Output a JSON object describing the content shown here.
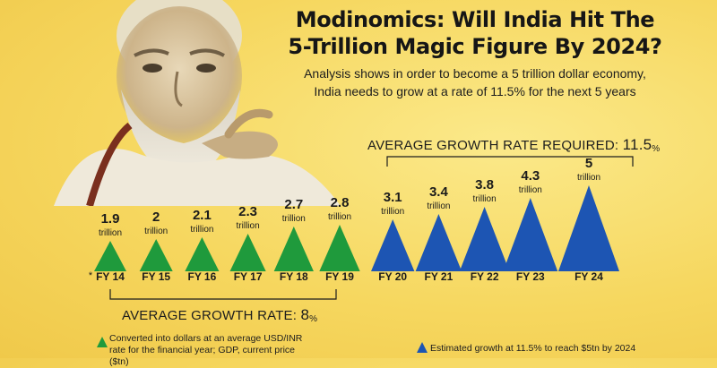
{
  "header": {
    "title_line1": "Modinomics: Will India Hit The",
    "title_line2": "5-Trillion Magic Figure By 2024?",
    "subtitle_line1": "Analysis shows in order to become a 5 trillion dollar economy,",
    "subtitle_line2": "India needs to grow at a rate of 11.5% for the next 5 years"
  },
  "growth": {
    "required_label": "AVERAGE GROWTH RATE REQUIRED:",
    "required_value": "11.5",
    "average_label": "AVERAGE GROWTH RATE:",
    "average_value": "8",
    "percent_sign": "%"
  },
  "legend": {
    "actual": "Converted into dollars at an average USD/INR rate for the financial year; GDP, current price ($tn)",
    "estimated": "Estimated growth at 11.5% to reach $5tn by 2024"
  },
  "chart_data": {
    "type": "bar",
    "categories": [
      "FY 14",
      "FY 15",
      "FY 16",
      "FY 17",
      "FY 18",
      "FY 19",
      "FY 20",
      "FY 21",
      "FY 22",
      "FY 23",
      "FY 24"
    ],
    "values": [
      1.9,
      2,
      2.1,
      2.3,
      2.7,
      2.8,
      3.1,
      3.4,
      3.8,
      4.3,
      5
    ],
    "value_labels": [
      "1.9",
      "2",
      "2.1",
      "2.3",
      "2.7",
      "2.8",
      "3.1",
      "3.4",
      "3.8",
      "4.3",
      "5"
    ],
    "unit_label": "trillion",
    "footnote_marker": "*",
    "series_type": [
      "actual",
      "actual",
      "actual",
      "actual",
      "actual",
      "actual",
      "estimated",
      "estimated",
      "estimated",
      "estimated",
      "estimated"
    ],
    "colors": {
      "actual": "#1f9a3c",
      "estimated": "#1d55b3"
    },
    "mark_shape": "triangle",
    "title": "Modinomics: Will India Hit The 5-Trillion Magic Figure By 2024?",
    "xlabel": "",
    "ylabel": "",
    "grid": false
  }
}
